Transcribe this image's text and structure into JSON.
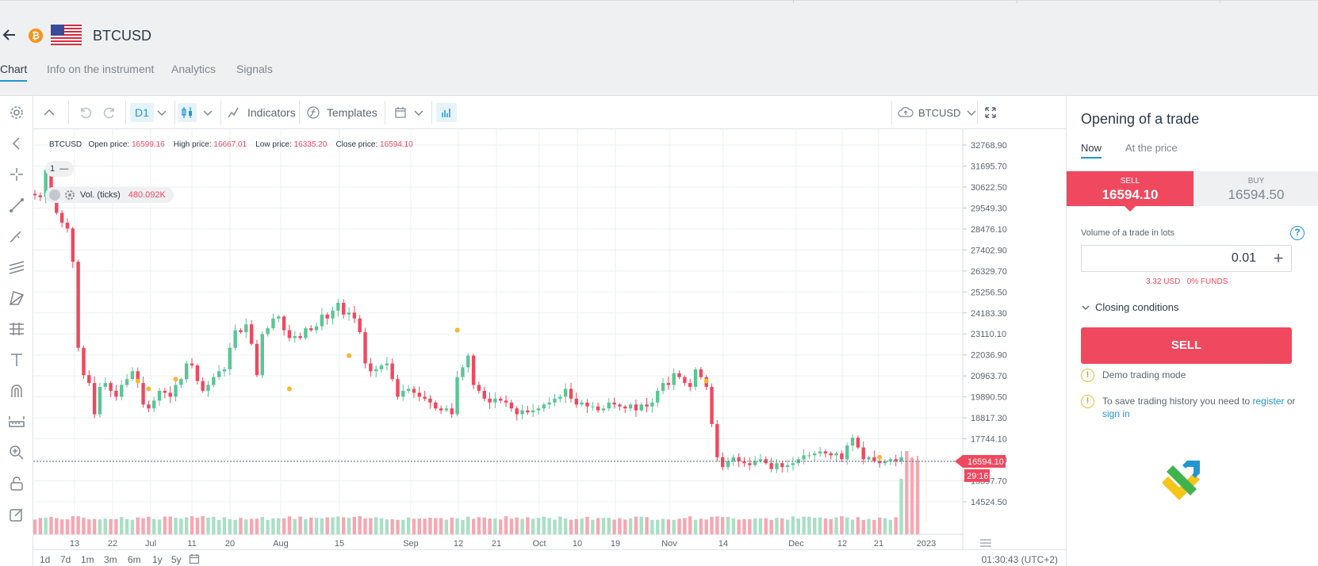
{
  "header": {
    "symbol": "BTCUSD",
    "btc_glyph": "₿",
    "icons": [
      "back-arrow-icon",
      "bitcoin-icon",
      "us-flag-icon"
    ],
    "tabs": [
      {
        "label": "Chart",
        "active": true
      },
      {
        "label": "Info on the instrument",
        "active": false
      },
      {
        "label": "Analytics",
        "active": false
      },
      {
        "label": "Signals",
        "active": false
      }
    ]
  },
  "toolbar": {
    "timeframe": "D1",
    "indicators_label": "Indicators",
    "templates_label": "Templates",
    "symbol_select": "BTCUSD"
  },
  "legend": {
    "symbol": "BTCUSD",
    "open_label": "Open price:",
    "open": "16599.16",
    "high_label": "High price:",
    "high": "16667.01",
    "low_label": "Low price:",
    "low": "16335.20",
    "close_label": "Close price:",
    "close": "16594.10"
  },
  "pane": {
    "number": "1",
    "collapse": "—"
  },
  "volume": {
    "label": "Vol. (ticks)",
    "value": "480.092K"
  },
  "chart_data": {
    "type": "candlestick",
    "y_ticks": [
      "32768.90",
      "31695.70",
      "30622.50",
      "29549.30",
      "28476.10",
      "27402.90",
      "26329.70",
      "25256.50",
      "24183.30",
      "23110.10",
      "22036.90",
      "20963.70",
      "19890.50",
      "18817.30",
      "17744.10",
      "16670.90",
      "15597.70",
      "14524.50"
    ],
    "x_ticks": [
      "13",
      "22",
      "Jul",
      "11",
      "20",
      "Aug",
      "15",
      "Sep",
      "12",
      "21",
      "Oct",
      "10",
      "19",
      "Nov",
      "14",
      "Dec",
      "12",
      "21",
      "2023"
    ],
    "current_price": "16594.10",
    "countdown": "29:16",
    "closes": [
      30200,
      30100,
      31500,
      30300,
      29300,
      28800,
      28500,
      26800,
      22400,
      21000,
      20600,
      19000,
      20400,
      20600,
      20200,
      19900,
      20500,
      20800,
      21200,
      20600,
      19500,
      19300,
      19700,
      20200,
      20100,
      19900,
      20500,
      20800,
      21600,
      21500,
      20700,
      20200,
      20500,
      20900,
      21200,
      21300,
      22400,
      23300,
      23200,
      23600,
      22600,
      21000,
      23100,
      23400,
      23900,
      24000,
      23300,
      22900,
      23000,
      22900,
      23400,
      23300,
      23500,
      24100,
      23900,
      24300,
      24700,
      24100,
      24200,
      23900,
      23200,
      21600,
      21200,
      21300,
      21500,
      21600,
      20800,
      19900,
      20200,
      20300,
      20100,
      19900,
      19800,
      19600,
      19300,
      19200,
      19300,
      19000,
      20900,
      21400,
      22000,
      20500,
      20200,
      19800,
      19600,
      19800,
      19700,
      19600,
      19300,
      19000,
      19200,
      19100,
      19200,
      19300,
      19500,
      19600,
      19800,
      19900,
      20300,
      19800,
      19500,
      19600,
      19400,
      19400,
      19200,
      19300,
      19600,
      19500,
      19400,
      19300,
      19500,
      19200,
      19500,
      19400,
      19600,
      20200,
      20600,
      20500,
      21100,
      20900,
      20600,
      20400,
      21300,
      20900,
      20400,
      18500,
      16800,
      16300,
      16600,
      16800,
      16600,
      16500,
      16400,
      16600,
      16700,
      16500,
      16200,
      16500,
      16300,
      16400,
      16500,
      16700,
      16900,
      16900,
      17000,
      17100,
      17000,
      16900,
      17000,
      16700,
      17400,
      17800,
      17300,
      16700,
      16800,
      16600,
      16500,
      16600,
      16700,
      16600,
      16800,
      16700,
      16600,
      16594
    ]
  },
  "periods": [
    "1d",
    "7d",
    "1m",
    "3m",
    "6m",
    "1y",
    "5y"
  ],
  "clock": "01:30:43 (UTC+2)",
  "panel": {
    "title": "Opening of a trade",
    "tab_now": "Now",
    "tab_at_price": "At the price",
    "sell_label": "SELL",
    "sell_price": "16594.10",
    "buy_label": "BUY",
    "buy_price": "16594.50",
    "volume_label": "Volume of a trade in lots",
    "help": "?",
    "lots": "0.01",
    "plus": "+",
    "margin_usd": "3.32 USD",
    "margin_funds": "0% FUNDS",
    "closing_conditions": "Closing conditions",
    "sell_button": "SELL",
    "demo_notice": "Demo trading mode",
    "history_notice": "To save trading history you need to",
    "register": "register",
    "or": "or",
    "sign_in": "sign in",
    "warn_glyph": "!"
  },
  "colors": {
    "up": "#5bc595",
    "down": "#f0485e",
    "accent": "#2196d3",
    "up_volume": "#a9dfc6",
    "down_volume": "#f6a7b2"
  }
}
